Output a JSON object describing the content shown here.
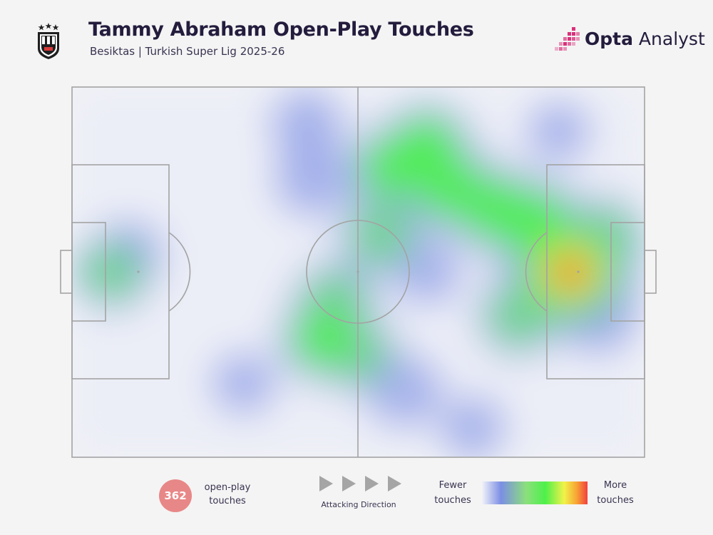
{
  "header": {
    "title": "Tammy Abraham Open-Play Touches",
    "subtitle": "Besiktas | Turkish Super Lig 2025-26",
    "crest_icon": "besiktas-crest-icon",
    "brand": {
      "name_bold": "Opta",
      "name_light": "Analyst",
      "icon": "opta-analyst-logo-icon"
    }
  },
  "colors": {
    "title": "#241c3d",
    "background": "#f4f4f4",
    "pitch_lines": "#a3a3a3",
    "count_badge": "#e88787",
    "arrow": "#a5a5a5",
    "brand_accent": "#d8317a"
  },
  "legend": {
    "count_value": "362",
    "count_label_line1": "open-play",
    "count_label_line2": "touches",
    "direction_label": "Attacking Direction",
    "direction_icon": "play-arrow-icon",
    "fewer_line1": "Fewer",
    "fewer_line2": "touches",
    "more_line1": "More",
    "more_line2": "touches",
    "scale_colors": [
      "#f1f2f8",
      "#7b8ee4",
      "#8be07c",
      "#4ef04a",
      "#f2f24a",
      "#f7a234",
      "#f23f3f"
    ]
  },
  "chart_data": {
    "type": "heatmap",
    "title": "Tammy Abraham Open-Play Touches",
    "subtitle": "Besiktas | Turkish Super Lig 2025-26",
    "x_range": [
      0,
      100
    ],
    "y_range": [
      0,
      100
    ],
    "attacking_direction": "left-to-right",
    "total_touches": 362,
    "hotspots": [
      {
        "x": 87,
        "y": 50,
        "intensity": 1.0
      },
      {
        "x": 81,
        "y": 37,
        "intensity": 0.55
      },
      {
        "x": 74,
        "y": 33,
        "intensity": 0.5
      },
      {
        "x": 66,
        "y": 27,
        "intensity": 0.5
      },
      {
        "x": 62,
        "y": 16,
        "intensity": 0.45
      },
      {
        "x": 56,
        "y": 22,
        "intensity": 0.45
      },
      {
        "x": 54,
        "y": 40,
        "intensity": 0.35
      },
      {
        "x": 46,
        "y": 58,
        "intensity": 0.35
      },
      {
        "x": 44,
        "y": 68,
        "intensity": 0.45
      },
      {
        "x": 50,
        "y": 72,
        "intensity": 0.3
      },
      {
        "x": 58,
        "y": 82,
        "intensity": 0.25
      },
      {
        "x": 42,
        "y": 25,
        "intensity": 0.25
      },
      {
        "x": 41,
        "y": 10,
        "intensity": 0.2
      },
      {
        "x": 62,
        "y": 50,
        "intensity": 0.15
      },
      {
        "x": 78,
        "y": 62,
        "intensity": 0.35
      },
      {
        "x": 93,
        "y": 40,
        "intensity": 0.3
      },
      {
        "x": 92,
        "y": 62,
        "intensity": 0.25
      },
      {
        "x": 7,
        "y": 50,
        "intensity": 0.3
      },
      {
        "x": 10,
        "y": 45,
        "intensity": 0.15
      },
      {
        "x": 30,
        "y": 80,
        "intensity": 0.1
      },
      {
        "x": 70,
        "y": 92,
        "intensity": 0.12
      },
      {
        "x": 85,
        "y": 12,
        "intensity": 0.08
      }
    ]
  }
}
